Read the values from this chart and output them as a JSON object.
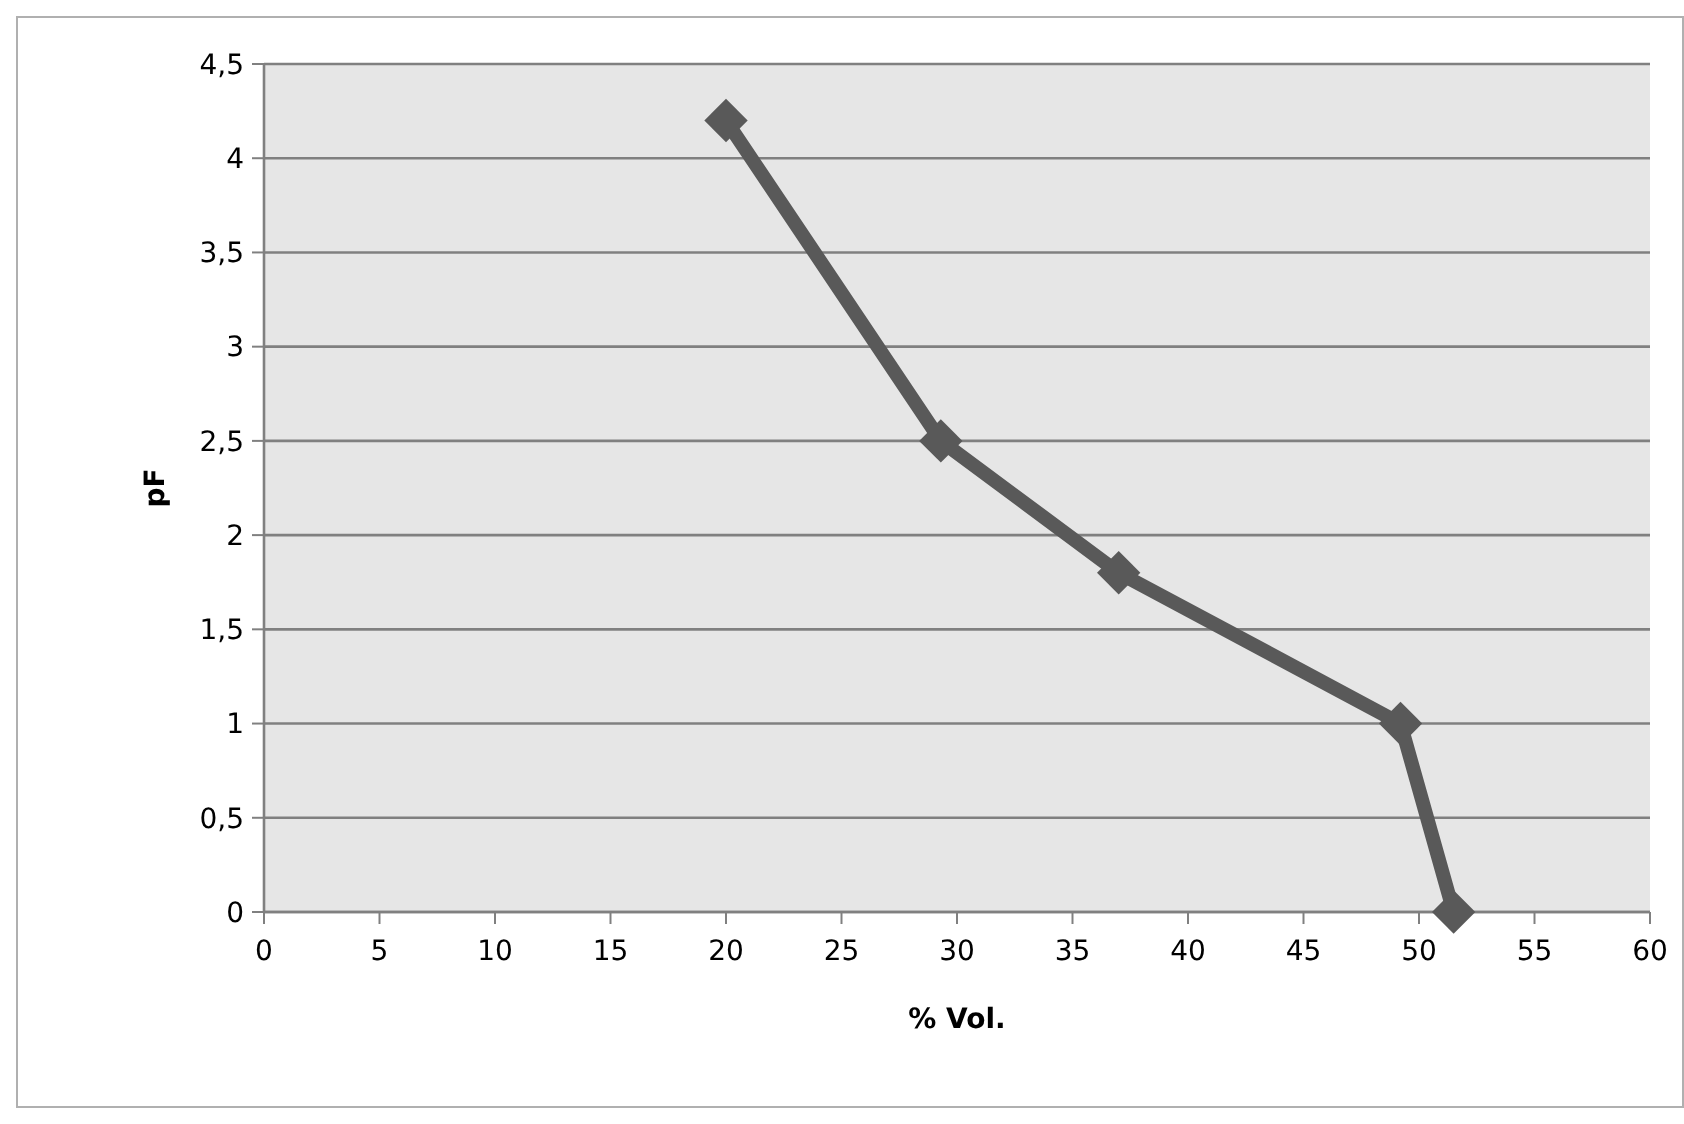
{
  "chart_data": {
    "type": "line",
    "xlabel": "% Vol.",
    "ylabel": "pF",
    "x": [
      20,
      29.3,
      37,
      49.2,
      51.5
    ],
    "series": [
      {
        "color": "#595959",
        "values": [
          4.2,
          2.5,
          1.8,
          1,
          0
        ]
      }
    ],
    "xlim": [
      0,
      60
    ],
    "xticks": [
      0,
      5,
      10,
      15,
      20,
      25,
      30,
      35,
      40,
      45,
      50,
      55,
      60
    ],
    "ylim": [
      0,
      4.5
    ],
    "yticks": [
      0,
      {
        "value": 0.5,
        "label": "0,5"
      },
      1,
      {
        "value": 1.5,
        "label": "1,5"
      },
      2,
      {
        "value": 2.5,
        "label": "2,5"
      },
      3,
      {
        "value": 3.5,
        "label": "3,5"
      },
      4,
      {
        "value": 4.5,
        "label": "4,5"
      }
    ],
    "grid": "y",
    "marker": "diamond",
    "line_style": "solid"
  }
}
